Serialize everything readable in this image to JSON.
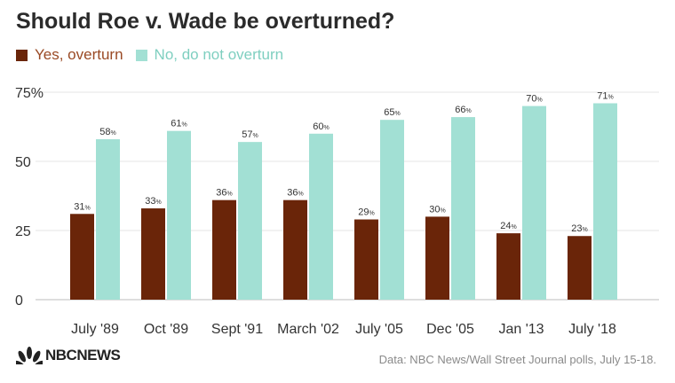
{
  "title": "Should Roe v. Wade be overturned?",
  "legend": [
    {
      "label": "Yes, overturn",
      "color": "#6a2509",
      "text_color": "#9a4a25"
    },
    {
      "label": "No, do not overturn",
      "color": "#a2e0d4",
      "text_color": "#7fcfc0"
    }
  ],
  "source": "Data: NBC News/Wall Street Journal polls, July 15-18.",
  "logo": {
    "text": "NBCNEWS",
    "icon": "peacock-icon"
  },
  "chart_data": {
    "type": "bar",
    "title": "Should Roe v. Wade be overturned?",
    "categories": [
      "July '89",
      "Oct '89",
      "Sept '91",
      "March '02",
      "July '05",
      "Dec '05",
      "Jan '13",
      "July '18"
    ],
    "series": [
      {
        "name": "Yes, overturn",
        "color": "#6a2509",
        "values": [
          31,
          33,
          36,
          36,
          29,
          30,
          24,
          23
        ]
      },
      {
        "name": "No, do not overturn",
        "color": "#a2e0d4",
        "values": [
          58,
          61,
          57,
          60,
          65,
          66,
          70,
          71
        ]
      }
    ],
    "yticks": [
      "0",
      "25",
      "50",
      "75%"
    ],
    "ytick_values": [
      0,
      25,
      50,
      75
    ],
    "ylim": [
      0,
      75
    ],
    "value_suffix": "%",
    "grid": true,
    "legend_position": "top-left"
  }
}
